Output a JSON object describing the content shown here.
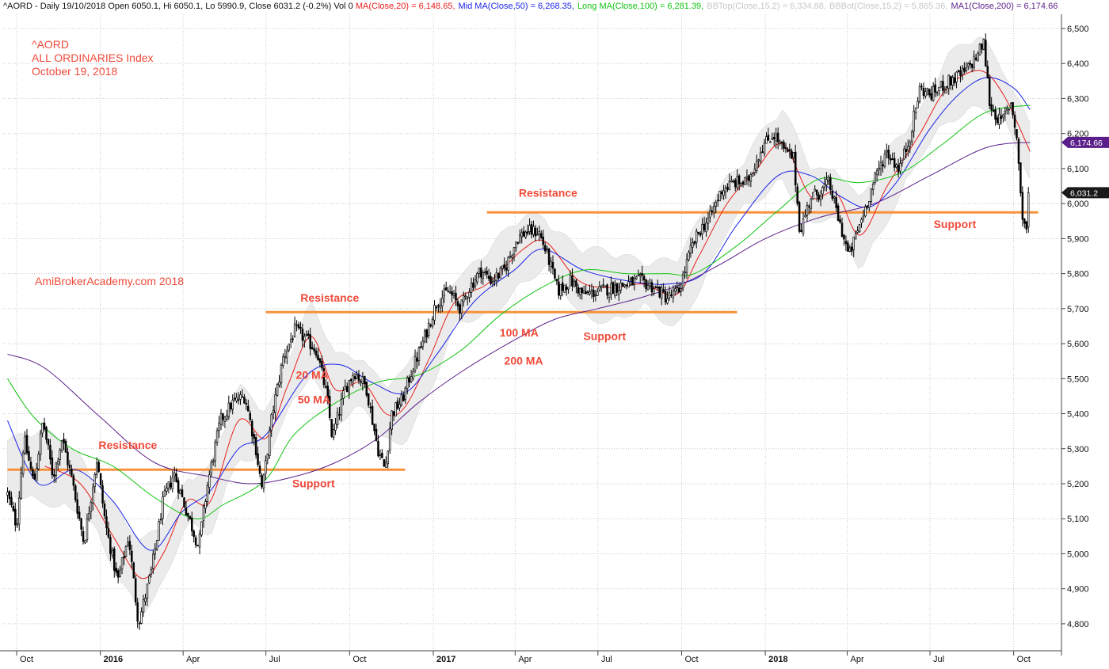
{
  "header": {
    "symbol": "^AORD",
    "info": " - Daily 19/10/2018 Open 6050.1, Hi 6050.1, Lo 5990.9, Close 6031.2 (-0.2%) Vol 0 ",
    "ma20": "MA(Close,20) = 6,148.65,",
    "ma50": "Mid MA(Close,50) = 6,268.35,",
    "ma100": "Long MA(Close,100) = 6,281.39,",
    "bbtop": "BBTop(Close,15,2) = 6,334.88,",
    "bbbot": "BBBot(Close,15,2) = 5,865.36,",
    "ma200": "MA1(Close,200) = 6,174.66"
  },
  "title_block": {
    "line1": "^AORD",
    "line2": "ALL ORDINARIES Index",
    "line3": "October 19, 2018",
    "watermark": "AmiBrokerAcademy.com  2018"
  },
  "colors": {
    "ma20": "#e8201c",
    "ma50": "#1b24e8",
    "ma100": "#12c412",
    "ma200": "#5a1f8a",
    "candle": "#000000",
    "band": "#e9e9e9",
    "sr_line": "#f7923a",
    "annotation": "#f04a3a",
    "grid": "#c8c8c8"
  },
  "chart_data": {
    "type": "line",
    "subtype": "candlestick",
    "date_range": [
      "2015-09-21",
      "2018-10-19"
    ],
    "ylim": [
      4750,
      6530
    ],
    "yticks": [
      4800,
      4900,
      5000,
      5100,
      5200,
      5300,
      5400,
      5500,
      5600,
      5700,
      5800,
      5900,
      6000,
      6100,
      6200,
      6300,
      6400,
      6500
    ],
    "ytick_labels": [
      "4,800",
      "4,900",
      "5,000",
      "5,100",
      "5,200",
      "5,300",
      "5,400",
      "5,500",
      "5,600",
      "5,700",
      "5,800",
      "5,900",
      "6,000",
      "6,100",
      "6,200",
      "6,300",
      "6,400",
      "6,500"
    ],
    "xticks": [
      {
        "date": "2015-10-01",
        "label": "Oct",
        "bold": false
      },
      {
        "date": "2016-01-01",
        "label": "2016",
        "bold": true
      },
      {
        "date": "2016-04-01",
        "label": "Apr",
        "bold": false
      },
      {
        "date": "2016-07-01",
        "label": "Jul",
        "bold": false
      },
      {
        "date": "2016-10-01",
        "label": "Oct",
        "bold": false
      },
      {
        "date": "2017-01-01",
        "label": "2017",
        "bold": true
      },
      {
        "date": "2017-04-01",
        "label": "Apr",
        "bold": false
      },
      {
        "date": "2017-07-01",
        "label": "Jul",
        "bold": false
      },
      {
        "date": "2017-10-01",
        "label": "Oct",
        "bold": false
      },
      {
        "date": "2018-01-01",
        "label": "2018",
        "bold": true
      },
      {
        "date": "2018-04-01",
        "label": "Apr",
        "bold": false
      },
      {
        "date": "2018-07-01",
        "label": "Jul",
        "bold": false
      },
      {
        "date": "2018-10-01",
        "label": "Oct",
        "bold": false
      }
    ],
    "price_path": [
      [
        "2015-09-21",
        5170
      ],
      [
        "2015-10-01",
        5080
      ],
      [
        "2015-10-09",
        5330
      ],
      [
        "2015-10-20",
        5200
      ],
      [
        "2015-10-30",
        5380
      ],
      [
        "2015-11-10",
        5220
      ],
      [
        "2015-11-20",
        5330
      ],
      [
        "2015-12-01",
        5210
      ],
      [
        "2015-12-14",
        5030
      ],
      [
        "2015-12-28",
        5270
      ],
      [
        "2016-01-07",
        5080
      ],
      [
        "2016-01-20",
        4920
      ],
      [
        "2016-02-01",
        5050
      ],
      [
        "2016-02-12",
        4800
      ],
      [
        "2016-02-26",
        4950
      ],
      [
        "2016-03-10",
        5150
      ],
      [
        "2016-03-22",
        5230
      ],
      [
        "2016-04-05",
        5120
      ],
      [
        "2016-04-18",
        5020
      ],
      [
        "2016-04-28",
        5200
      ],
      [
        "2016-05-12",
        5380
      ],
      [
        "2016-05-25",
        5430
      ],
      [
        "2016-06-08",
        5450
      ],
      [
        "2016-06-20",
        5300
      ],
      [
        "2016-06-27",
        5180
      ],
      [
        "2016-07-08",
        5400
      ],
      [
        "2016-07-20",
        5560
      ],
      [
        "2016-08-02",
        5640
      ],
      [
        "2016-08-15",
        5610
      ],
      [
        "2016-08-26",
        5580
      ],
      [
        "2016-09-06",
        5450
      ],
      [
        "2016-09-12",
        5330
      ],
      [
        "2016-09-26",
        5470
      ],
      [
        "2016-10-06",
        5520
      ],
      [
        "2016-10-19",
        5480
      ],
      [
        "2016-11-01",
        5300
      ],
      [
        "2016-11-09",
        5240
      ],
      [
        "2016-11-16",
        5400
      ],
      [
        "2016-11-28",
        5440
      ],
      [
        "2016-12-08",
        5520
      ],
      [
        "2016-12-20",
        5600
      ],
      [
        "2017-01-05",
        5720
      ],
      [
        "2017-01-18",
        5750
      ],
      [
        "2017-01-31",
        5700
      ],
      [
        "2017-02-10",
        5760
      ],
      [
        "2017-02-22",
        5810
      ],
      [
        "2017-03-06",
        5780
      ],
      [
        "2017-03-20",
        5810
      ],
      [
        "2017-04-03",
        5900
      ],
      [
        "2017-04-13",
        5920
      ],
      [
        "2017-04-27",
        5920
      ],
      [
        "2017-05-08",
        5840
      ],
      [
        "2017-05-18",
        5750
      ],
      [
        "2017-06-01",
        5780
      ],
      [
        "2017-06-15",
        5740
      ],
      [
        "2017-07-03",
        5750
      ],
      [
        "2017-07-17",
        5760
      ],
      [
        "2017-08-01",
        5770
      ],
      [
        "2017-08-16",
        5780
      ],
      [
        "2017-09-01",
        5760
      ],
      [
        "2017-09-15",
        5730
      ],
      [
        "2017-09-28",
        5750
      ],
      [
        "2017-10-10",
        5860
      ],
      [
        "2017-10-20",
        5920
      ],
      [
        "2017-11-01",
        5960
      ],
      [
        "2017-11-14",
        6040
      ],
      [
        "2017-11-28",
        6060
      ],
      [
        "2017-12-12",
        6060
      ],
      [
        "2017-12-28",
        6160
      ],
      [
        "2018-01-10",
        6200
      ],
      [
        "2018-01-22",
        6150
      ],
      [
        "2018-02-01",
        6130
      ],
      [
        "2018-02-08",
        5920
      ],
      [
        "2018-02-20",
        6020
      ],
      [
        "2018-03-01",
        6030
      ],
      [
        "2018-03-12",
        6060
      ],
      [
        "2018-03-22",
        5960
      ],
      [
        "2018-04-03",
        5850
      ],
      [
        "2018-04-16",
        5950
      ],
      [
        "2018-04-30",
        6060
      ],
      [
        "2018-05-14",
        6150
      ],
      [
        "2018-05-28",
        6100
      ],
      [
        "2018-06-08",
        6180
      ],
      [
        "2018-06-20",
        6330
      ],
      [
        "2018-07-02",
        6310
      ],
      [
        "2018-07-16",
        6340
      ],
      [
        "2018-07-30",
        6360
      ],
      [
        "2018-08-10",
        6380
      ],
      [
        "2018-08-21",
        6420
      ],
      [
        "2018-08-29",
        6460
      ],
      [
        "2018-09-05",
        6280
      ],
      [
        "2018-09-17",
        6230
      ],
      [
        "2018-09-28",
        6290
      ],
      [
        "2018-10-04",
        6200
      ],
      [
        "2018-10-11",
        5950
      ],
      [
        "2018-10-15",
        5930
      ],
      [
        "2018-10-19",
        6031
      ]
    ],
    "series": [
      {
        "name": "MA(Close,20)",
        "color": "#e8201c",
        "points": [
          [
            "2015-11-01",
            5250
          ],
          [
            "2015-12-10",
            5200
          ],
          [
            "2016-01-15",
            5050
          ],
          [
            "2016-02-15",
            4930
          ],
          [
            "2016-03-10",
            5000
          ],
          [
            "2016-04-05",
            5150
          ],
          [
            "2016-05-01",
            5150
          ],
          [
            "2016-06-01",
            5380
          ],
          [
            "2016-07-01",
            5330
          ],
          [
            "2016-07-25",
            5480
          ],
          [
            "2016-08-20",
            5620
          ],
          [
            "2016-09-15",
            5470
          ],
          [
            "2016-10-15",
            5490
          ],
          [
            "2016-11-10",
            5400
          ],
          [
            "2016-12-01",
            5420
          ],
          [
            "2016-12-28",
            5560
          ],
          [
            "2017-01-25",
            5720
          ],
          [
            "2017-03-01",
            5770
          ],
          [
            "2017-04-10",
            5870
          ],
          [
            "2017-05-05",
            5890
          ],
          [
            "2017-06-10",
            5780
          ],
          [
            "2017-07-15",
            5760
          ],
          [
            "2017-08-20",
            5770
          ],
          [
            "2017-09-25",
            5740
          ],
          [
            "2017-10-20",
            5850
          ],
          [
            "2017-11-20",
            6000
          ],
          [
            "2017-12-20",
            6090
          ],
          [
            "2018-01-20",
            6170
          ],
          [
            "2018-02-20",
            6020
          ],
          [
            "2018-03-20",
            6030
          ],
          [
            "2018-04-15",
            5910
          ],
          [
            "2018-05-15",
            6050
          ],
          [
            "2018-06-20",
            6200
          ],
          [
            "2018-07-20",
            6330
          ],
          [
            "2018-08-25",
            6380
          ],
          [
            "2018-09-20",
            6310
          ],
          [
            "2018-10-19",
            6149
          ]
        ]
      },
      {
        "name": "Mid MA(Close,50)",
        "color": "#1b24e8",
        "points": [
          [
            "2015-09-21",
            5380
          ],
          [
            "2015-10-25",
            5200
          ],
          [
            "2015-12-05",
            5240
          ],
          [
            "2016-01-15",
            5150
          ],
          [
            "2016-02-25",
            5010
          ],
          [
            "2016-03-31",
            5120
          ],
          [
            "2016-05-01",
            5180
          ],
          [
            "2016-06-01",
            5300
          ],
          [
            "2016-07-01",
            5340
          ],
          [
            "2016-08-15",
            5510
          ],
          [
            "2016-09-20",
            5540
          ],
          [
            "2016-10-25",
            5490
          ],
          [
            "2016-12-01",
            5460
          ],
          [
            "2017-01-05",
            5570
          ],
          [
            "2017-02-15",
            5720
          ],
          [
            "2017-03-31",
            5810
          ],
          [
            "2017-05-01",
            5870
          ],
          [
            "2017-06-15",
            5810
          ],
          [
            "2017-08-01",
            5780
          ],
          [
            "2017-09-15",
            5770
          ],
          [
            "2017-10-25",
            5800
          ],
          [
            "2017-12-01",
            5940
          ],
          [
            "2018-01-15",
            6080
          ],
          [
            "2018-02-20",
            6080
          ],
          [
            "2018-03-25",
            6020
          ],
          [
            "2018-04-25",
            5990
          ],
          [
            "2018-05-25",
            6060
          ],
          [
            "2018-06-30",
            6210
          ],
          [
            "2018-08-01",
            6310
          ],
          [
            "2018-09-01",
            6360
          ],
          [
            "2018-10-01",
            6330
          ],
          [
            "2018-10-19",
            6268
          ]
        ]
      },
      {
        "name": "Long MA(Close,100)",
        "color": "#12c412",
        "points": [
          [
            "2015-09-21",
            5500
          ],
          [
            "2015-10-20",
            5390
          ],
          [
            "2015-12-01",
            5300
          ],
          [
            "2016-01-15",
            5250
          ],
          [
            "2016-03-01",
            5160
          ],
          [
            "2016-04-15",
            5100
          ],
          [
            "2016-05-15",
            5140
          ],
          [
            "2016-06-30",
            5210
          ],
          [
            "2016-08-01",
            5340
          ],
          [
            "2016-09-15",
            5430
          ],
          [
            "2016-11-01",
            5490
          ],
          [
            "2016-12-15",
            5510
          ],
          [
            "2017-01-31",
            5580
          ],
          [
            "2017-03-15",
            5680
          ],
          [
            "2017-04-30",
            5760
          ],
          [
            "2017-06-15",
            5810
          ],
          [
            "2017-08-01",
            5800
          ],
          [
            "2017-09-15",
            5800
          ],
          [
            "2017-10-15",
            5800
          ],
          [
            "2017-12-01",
            5880
          ],
          [
            "2018-01-15",
            5980
          ],
          [
            "2018-03-01",
            6070
          ],
          [
            "2018-04-15",
            6060
          ],
          [
            "2018-06-01",
            6090
          ],
          [
            "2018-07-15",
            6170
          ],
          [
            "2018-08-31",
            6260
          ],
          [
            "2018-10-19",
            6281
          ]
        ]
      },
      {
        "name": "MA1(Close,200)",
        "color": "#5a1f8a",
        "points": [
          [
            "2015-09-21",
            5570
          ],
          [
            "2015-11-01",
            5530
          ],
          [
            "2016-01-01",
            5390
          ],
          [
            "2016-03-01",
            5260
          ],
          [
            "2016-05-01",
            5220
          ],
          [
            "2016-06-15",
            5200
          ],
          [
            "2016-08-01",
            5220
          ],
          [
            "2016-09-15",
            5260
          ],
          [
            "2016-11-01",
            5330
          ],
          [
            "2016-12-15",
            5430
          ],
          [
            "2017-02-01",
            5520
          ],
          [
            "2017-03-31",
            5610
          ],
          [
            "2017-05-15",
            5670
          ],
          [
            "2017-07-01",
            5700
          ],
          [
            "2017-08-15",
            5730
          ],
          [
            "2017-10-01",
            5770
          ],
          [
            "2017-11-15",
            5830
          ],
          [
            "2018-01-01",
            5900
          ],
          [
            "2018-03-01",
            5960
          ],
          [
            "2018-05-01",
            6000
          ],
          [
            "2018-07-01",
            6080
          ],
          [
            "2018-09-01",
            6160
          ],
          [
            "2018-10-19",
            6175
          ]
        ]
      }
    ],
    "levels": [
      {
        "name": "resistance-2015",
        "value": 5240,
        "start": "2015-09-21",
        "end": "2016-12-01"
      },
      {
        "name": "resistance-2016",
        "value": 5690,
        "start": "2016-07-01",
        "end": "2017-12-01"
      },
      {
        "name": "resistance-2017",
        "value": 5975,
        "start": "2017-03-01",
        "end": "2018-10-28"
      }
    ],
    "annotations": [
      {
        "text": "Resistance",
        "date": "2015-12-30",
        "value": 5300
      },
      {
        "text": "Support",
        "date": "2016-07-30",
        "value": 5190
      },
      {
        "text": "Resistance",
        "date": "2016-08-08",
        "value": 5720
      },
      {
        "text": "Support",
        "date": "2017-06-15",
        "value": 5610
      },
      {
        "text": "Resistance",
        "date": "2017-04-05",
        "value": 6020
      },
      {
        "text": "Support",
        "date": "2018-07-05",
        "value": 5930
      },
      {
        "text": "20 MA",
        "date": "2016-08-03",
        "value": 5500
      },
      {
        "text": "50 MA",
        "date": "2016-08-05",
        "value": 5430
      },
      {
        "text": "100 MA",
        "date": "2017-03-15",
        "value": 5620
      },
      {
        "text": "200 MA",
        "date": "2017-03-20",
        "value": 5540
      }
    ],
    "price_tags": [
      {
        "text": "6,174.66",
        "value": 6174.66,
        "color": "#5a1f8a"
      },
      {
        "text": "6,031.2",
        "value": 6031.2,
        "color": "#1a1a1a"
      }
    ]
  }
}
